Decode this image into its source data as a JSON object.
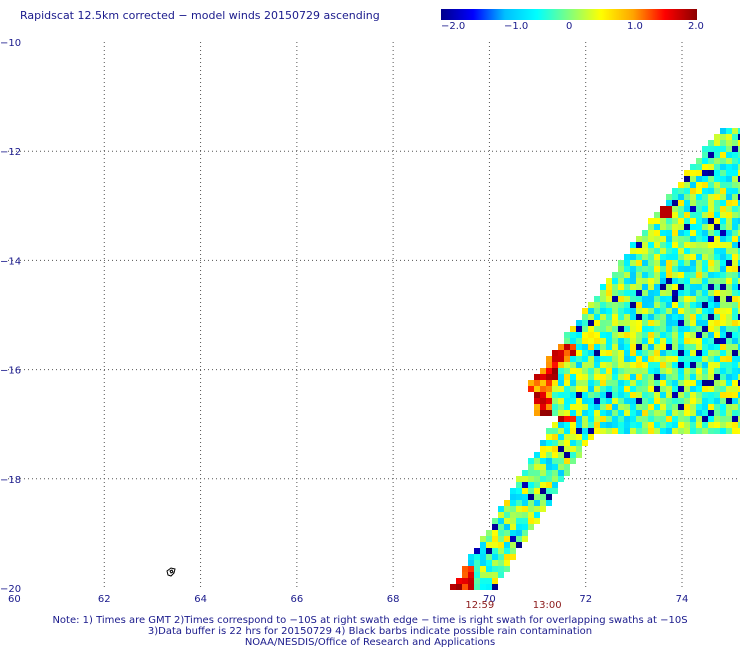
{
  "title": "Rapidscat 12.5km corrected − model winds 20150729 ascending",
  "colorbar": {
    "labels": [
      "−2.0",
      "−1.0",
      "0",
      "1.0",
      "2.0"
    ],
    "stops": [
      "#00008b",
      "#0000ff",
      "#00bfff",
      "#00ffff",
      "#7fff7f",
      "#ffff00",
      "#ffa500",
      "#ff0000",
      "#8b0000"
    ]
  },
  "chart_data": {
    "type": "heatmap",
    "xlabel": "",
    "ylabel": "",
    "lon_ticks": [
      "60",
      "62",
      "64",
      "66",
      "68",
      "70",
      "72",
      "74"
    ],
    "lat_ticks": [
      "−10",
      "−12",
      "−14",
      "−16",
      "−18",
      "−20"
    ],
    "xlim": [
      60,
      74.8
    ],
    "ylim": [
      -20,
      -10
    ],
    "grid": true,
    "value_range": [
      -2.0,
      2.0
    ],
    "swath_time_labels": [
      {
        "text": "12:59",
        "lon": 69.8
      },
      {
        "text": "13:00",
        "lon": 71.2
      }
    ]
  },
  "notes": [
    "Note: 1) Times are GMT 2)Times correspond to −10S at right swath edge − time is right swath for overlapping swaths at −10S",
    "3)Data buffer is 22 hrs for 20150729 4) Black barbs indicate possible rain contamination",
    "NOAA/NESDIS/Office of Research and Applications"
  ]
}
